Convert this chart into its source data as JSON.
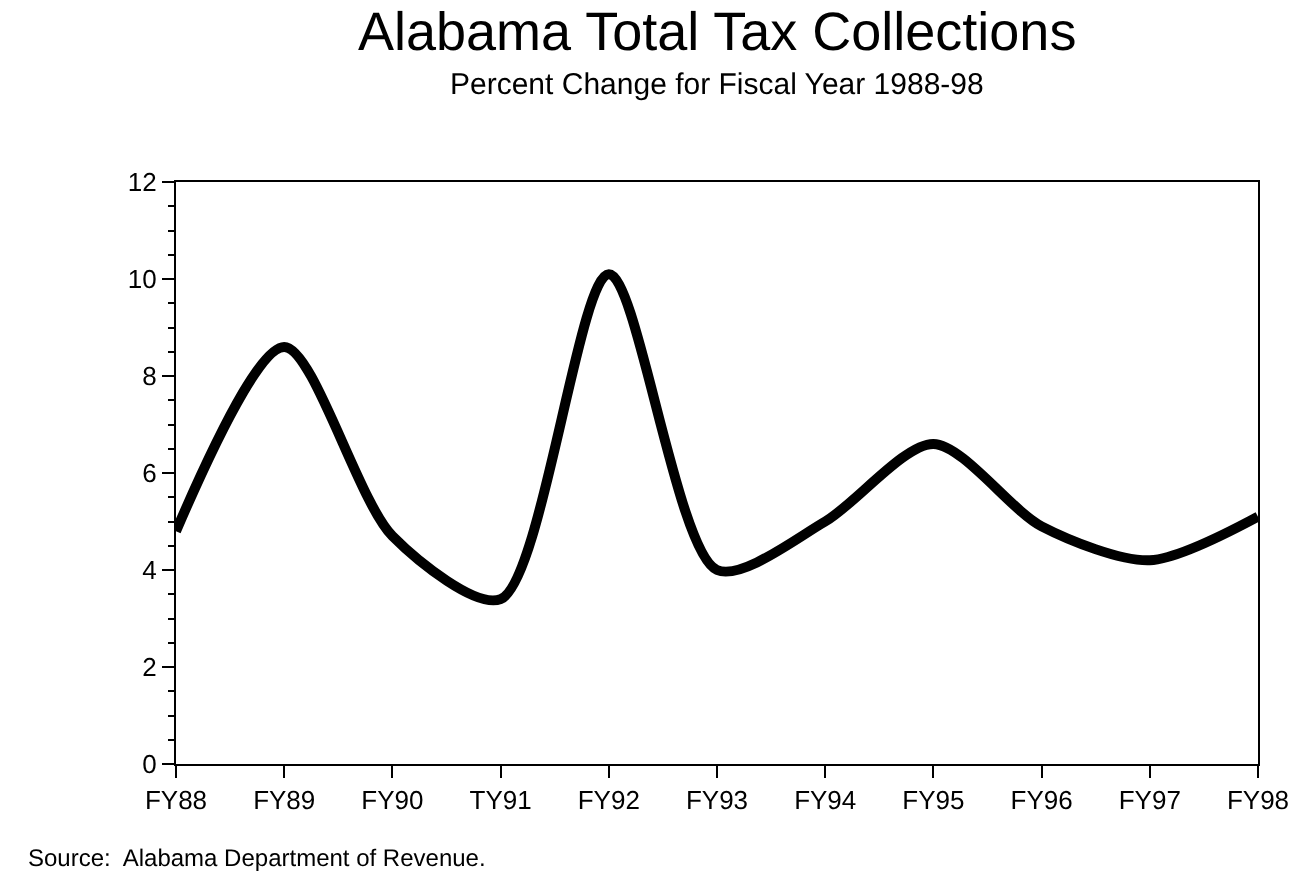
{
  "chart_data": {
    "type": "line",
    "title": "Alabama Total Tax Collections",
    "subtitle": "Percent Change for Fiscal Year 1988-98",
    "categories": [
      "FY88",
      "FY89",
      "FY90",
      "TY91",
      "FY92",
      "FY93",
      "FY94",
      "FY95",
      "FY96",
      "FY97",
      "FY98"
    ],
    "series": [
      {
        "color": "#000000",
        "values": [
          4.8,
          8.6,
          4.7,
          3.4,
          10.1,
          4.0,
          5.0,
          6.6,
          4.9,
          4.2,
          5.1
        ]
      }
    ],
    "ylim": [
      0,
      12
    ],
    "yticks": [
      0,
      2,
      4,
      6,
      8,
      10,
      12
    ],
    "legend": false,
    "marker": "none",
    "line_style": "solid",
    "annotations": [
      "Source:  Alabama Department of Revenue."
    ]
  }
}
